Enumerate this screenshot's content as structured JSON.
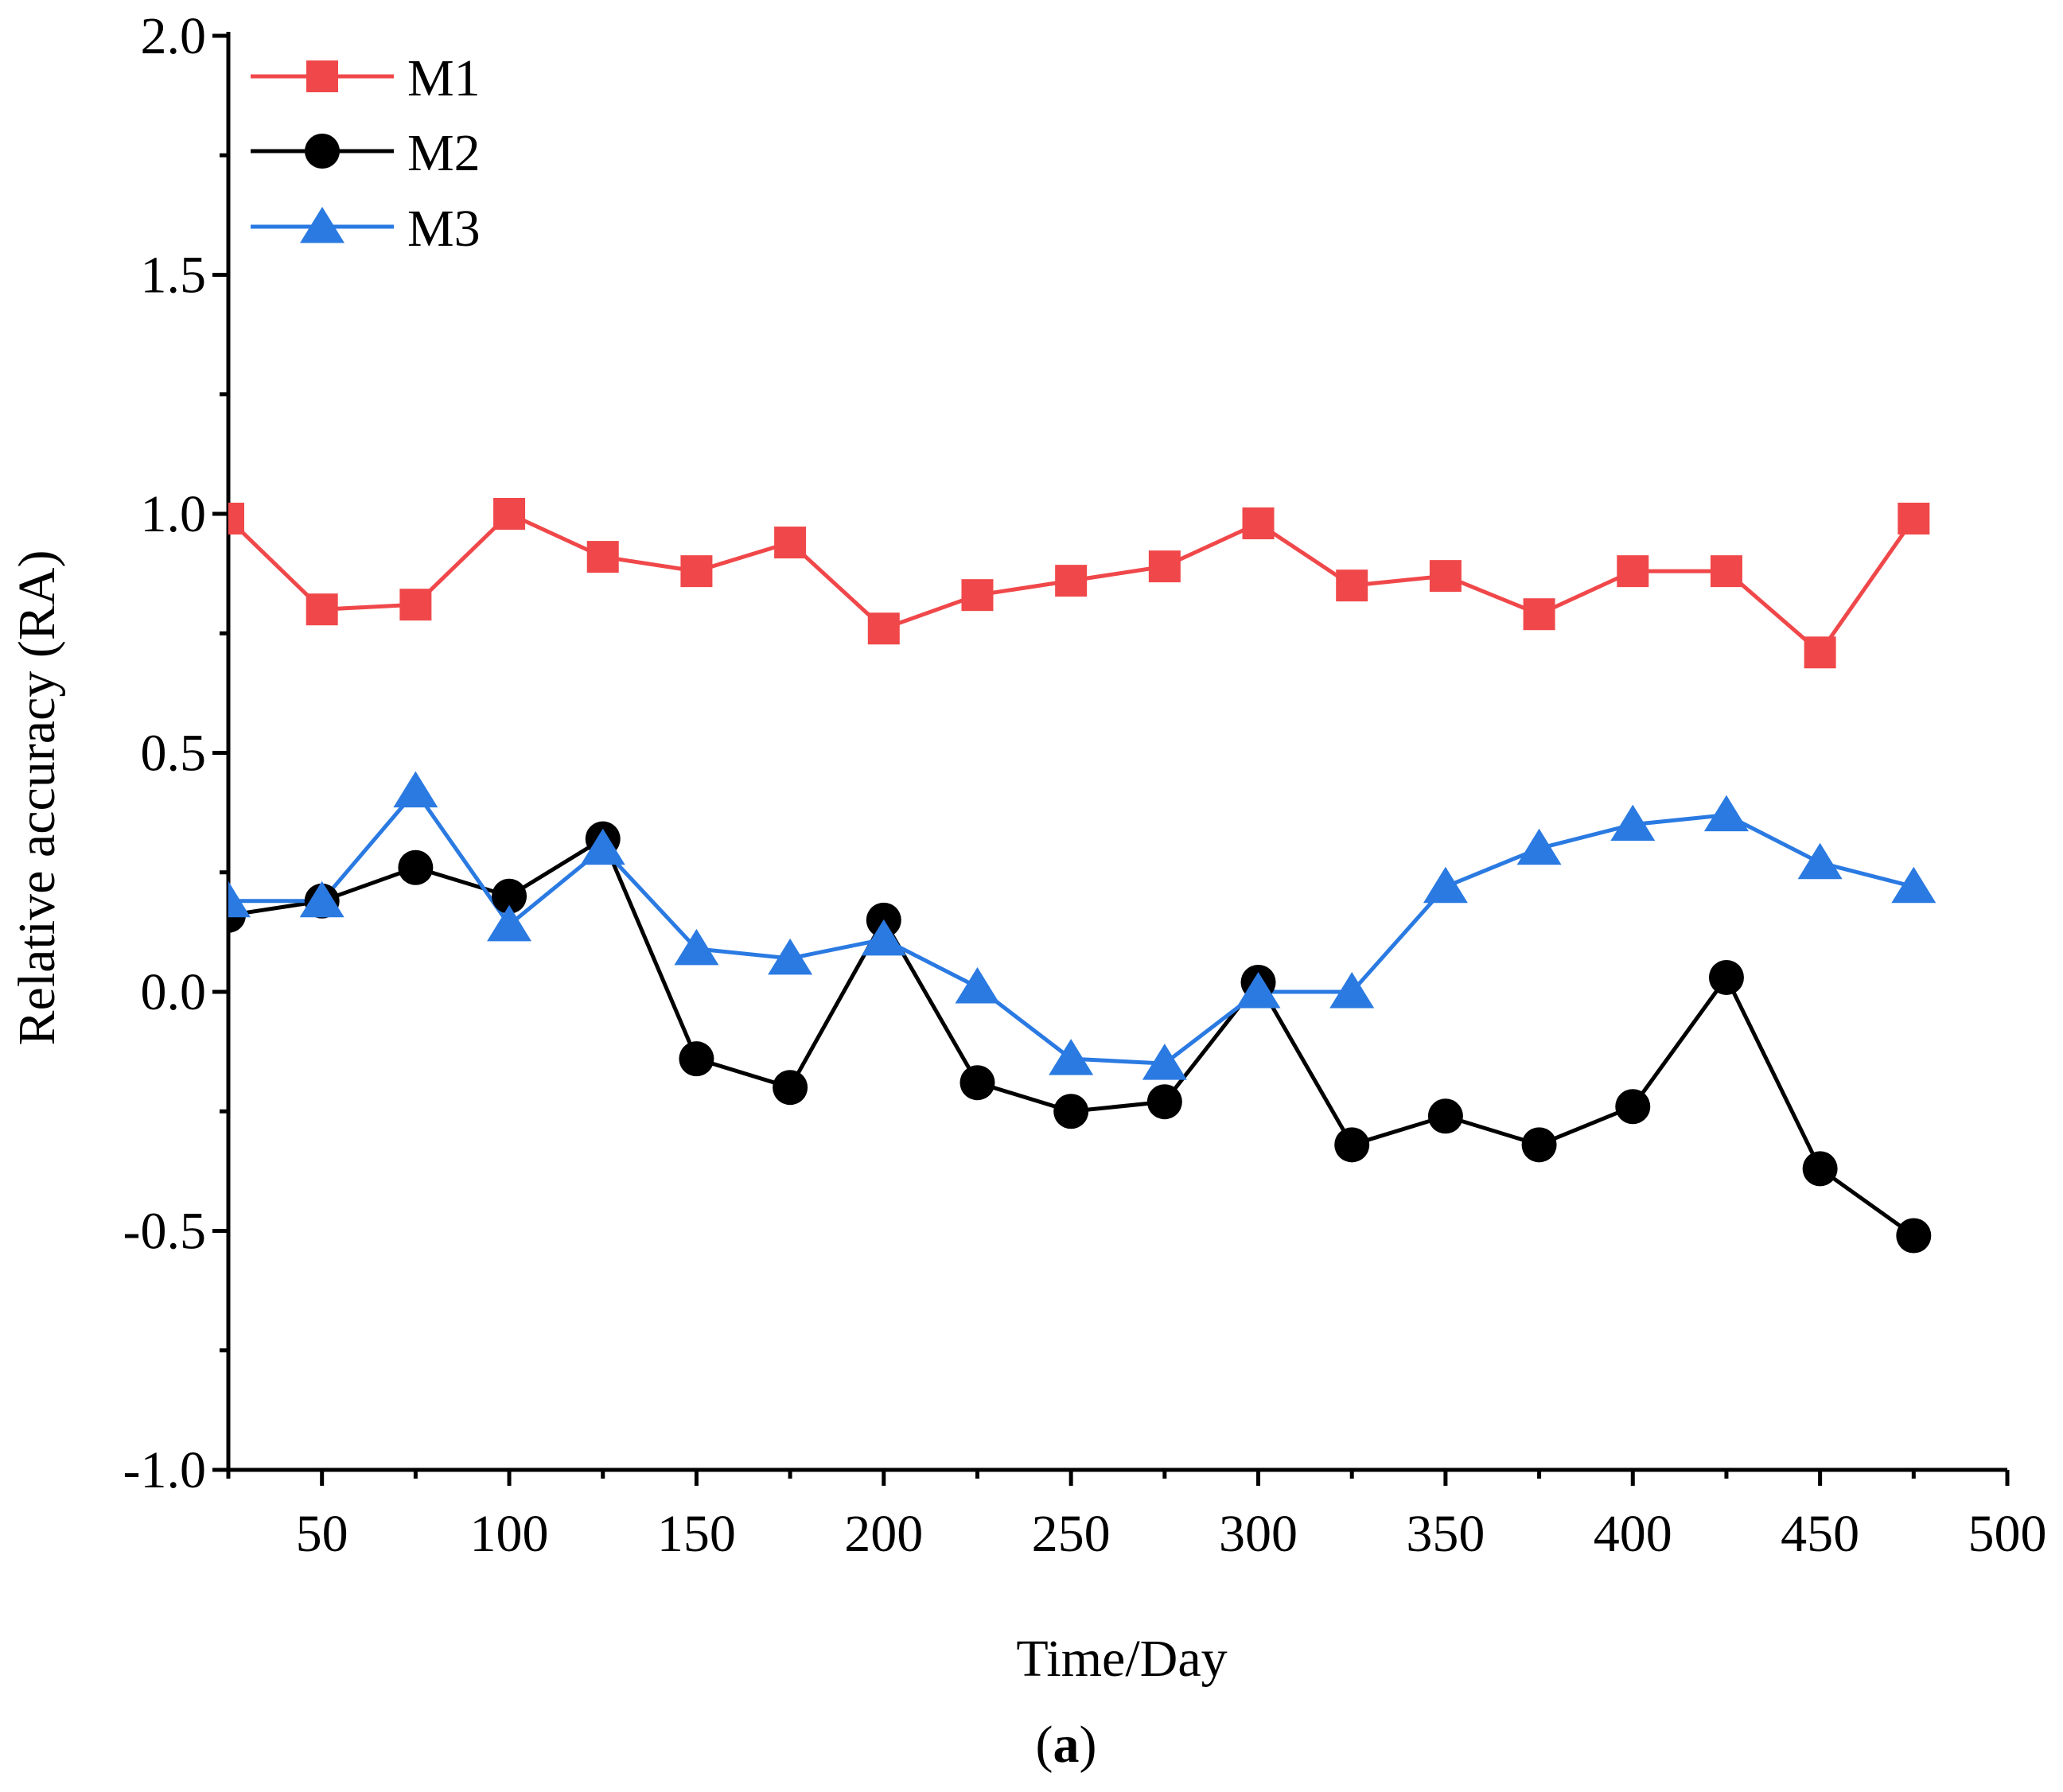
{
  "chart_data": {
    "type": "line",
    "title": "",
    "xlabel": "Time/Day",
    "ylabel": "Relative accuracy (RA)",
    "caption_prefix": "(",
    "caption_letter": "a",
    "caption_suffix": ")",
    "xlim": [
      25,
      500
    ],
    "ylim": [
      -1.0,
      2.0
    ],
    "x_ticks": [
      50,
      100,
      150,
      200,
      250,
      300,
      350,
      400,
      450,
      500
    ],
    "x_tick_labels": [
      "50",
      "100",
      "150",
      "200",
      "250",
      "300",
      "350",
      "400",
      "450",
      "500"
    ],
    "y_ticks": [
      -1.0,
      -0.5,
      0.0,
      0.5,
      1.0,
      1.5,
      2.0
    ],
    "y_tick_labels": [
      "-1.0",
      "-0.5",
      "0.0",
      "0.5",
      "1.0",
      "1.5",
      "2.0"
    ],
    "y_minor_step": 0.25,
    "x_minor_step": 25,
    "legend_position": "top-left",
    "x": [
      25,
      50,
      75,
      100,
      125,
      150,
      175,
      200,
      225,
      250,
      275,
      300,
      325,
      350,
      375,
      400,
      425,
      450,
      475
    ],
    "series": [
      {
        "name": "M1",
        "color": "#f0484a",
        "marker": "square",
        "values": [
          0.99,
          0.8,
          0.81,
          1.0,
          0.91,
          0.88,
          0.94,
          0.76,
          0.83,
          0.86,
          0.89,
          0.98,
          0.85,
          0.87,
          0.79,
          0.88,
          0.88,
          0.71,
          0.99
        ]
      },
      {
        "name": "M2",
        "color": "#000000",
        "marker": "circle",
        "values": [
          0.16,
          0.19,
          0.26,
          0.2,
          0.32,
          -0.14,
          -0.2,
          0.15,
          -0.19,
          -0.25,
          -0.23,
          0.02,
          -0.32,
          -0.26,
          -0.32,
          -0.24,
          0.03,
          -0.37,
          -0.51
        ]
      },
      {
        "name": "M3",
        "color": "#2a7ae2",
        "marker": "triangle",
        "values": [
          0.19,
          0.19,
          0.42,
          0.14,
          0.3,
          0.09,
          0.07,
          0.11,
          0.01,
          -0.14,
          -0.15,
          0.0,
          0.0,
          0.22,
          0.3,
          0.35,
          0.37,
          0.27,
          0.22
        ]
      }
    ]
  }
}
